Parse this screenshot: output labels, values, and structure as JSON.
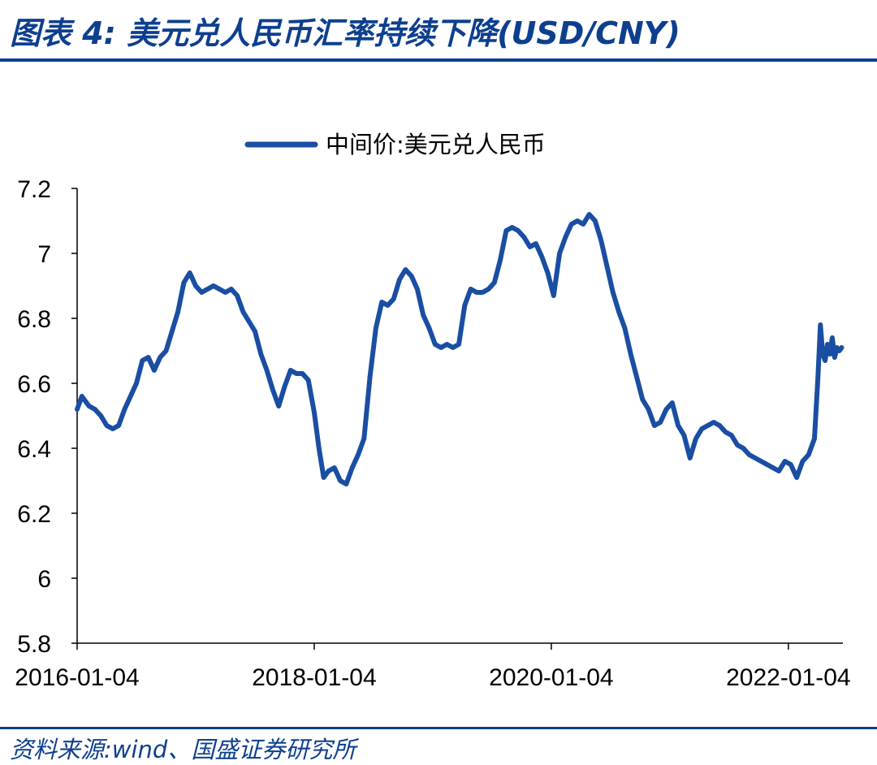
{
  "header": {
    "title": "图表 4:  美元兑人民币汇率持续下降(USD/CNY)"
  },
  "footer": {
    "source": "资料来源:wind、国盛证券研究所"
  },
  "colors": {
    "accent": "#0d3f8f",
    "series": "#1a4ea3"
  },
  "chart_data": {
    "type": "line",
    "title": "",
    "xlabel": "",
    "ylabel": "",
    "ylim": [
      5.8,
      7.2
    ],
    "yticks": [
      "5.8",
      "6",
      "6.2",
      "6.4",
      "6.6",
      "6.8",
      "7",
      "7.2"
    ],
    "xticks": [
      "2016-01-04",
      "2018-01-04",
      "2020-01-04",
      "2022-01-04"
    ],
    "xrange": [
      2016.0,
      2022.46
    ],
    "legend_position": "top-center",
    "series": [
      {
        "name": "中间价:美元兑人民币",
        "x": [
          2016.0,
          2016.04,
          2016.1,
          2016.15,
          2016.2,
          2016.25,
          2016.3,
          2016.35,
          2016.4,
          2016.45,
          2016.5,
          2016.55,
          2016.6,
          2016.65,
          2016.7,
          2016.75,
          2016.8,
          2016.85,
          2016.9,
          2016.95,
          2017.0,
          2017.05,
          2017.1,
          2017.15,
          2017.2,
          2017.25,
          2017.3,
          2017.35,
          2017.4,
          2017.45,
          2017.5,
          2017.55,
          2017.6,
          2017.65,
          2017.7,
          2017.75,
          2017.8,
          2017.85,
          2017.9,
          2017.95,
          2018.0,
          2018.04,
          2018.08,
          2018.12,
          2018.17,
          2018.22,
          2018.27,
          2018.32,
          2018.37,
          2018.42,
          2018.47,
          2018.52,
          2018.57,
          2018.62,
          2018.67,
          2018.72,
          2018.77,
          2018.82,
          2018.87,
          2018.92,
          2018.97,
          2019.02,
          2019.07,
          2019.12,
          2019.17,
          2019.22,
          2019.27,
          2019.32,
          2019.37,
          2019.42,
          2019.47,
          2019.52,
          2019.57,
          2019.62,
          2019.67,
          2019.72,
          2019.77,
          2019.82,
          2019.87,
          2019.92,
          2019.97,
          2020.02,
          2020.07,
          2020.12,
          2020.17,
          2020.22,
          2020.27,
          2020.32,
          2020.37,
          2020.42,
          2020.47,
          2020.52,
          2020.57,
          2020.62,
          2020.67,
          2020.72,
          2020.77,
          2020.82,
          2020.87,
          2020.92,
          2020.97,
          2021.02,
          2021.07,
          2021.12,
          2021.17,
          2021.22,
          2021.27,
          2021.32,
          2021.37,
          2021.42,
          2021.47,
          2021.52,
          2021.57,
          2021.62,
          2021.67,
          2021.72,
          2021.77,
          2021.82,
          2021.87,
          2021.92,
          2021.97,
          2022.02,
          2022.07,
          2022.12,
          2022.17,
          2022.22,
          2022.25,
          2022.27,
          2022.29,
          2022.31,
          2022.33,
          2022.35,
          2022.37,
          2022.39,
          2022.41,
          2022.43,
          2022.45
        ],
        "values": [
          6.52,
          6.56,
          6.53,
          6.52,
          6.5,
          6.47,
          6.46,
          6.47,
          6.52,
          6.56,
          6.6,
          6.67,
          6.68,
          6.64,
          6.68,
          6.7,
          6.76,
          6.82,
          6.91,
          6.94,
          6.9,
          6.88,
          6.89,
          6.9,
          6.89,
          6.88,
          6.89,
          6.87,
          6.82,
          6.79,
          6.76,
          6.69,
          6.64,
          6.58,
          6.53,
          6.59,
          6.64,
          6.63,
          6.63,
          6.61,
          6.51,
          6.4,
          6.31,
          6.33,
          6.34,
          6.3,
          6.29,
          6.34,
          6.38,
          6.43,
          6.62,
          6.77,
          6.85,
          6.84,
          6.86,
          6.92,
          6.95,
          6.93,
          6.89,
          6.81,
          6.77,
          6.72,
          6.71,
          6.72,
          6.71,
          6.72,
          6.84,
          6.89,
          6.88,
          6.88,
          6.89,
          6.91,
          6.98,
          7.07,
          7.08,
          7.07,
          7.05,
          7.02,
          7.03,
          6.99,
          6.94,
          6.87,
          7.0,
          7.05,
          7.09,
          7.1,
          7.09,
          7.12,
          7.1,
          7.04,
          6.96,
          6.88,
          6.82,
          6.77,
          6.69,
          6.62,
          6.55,
          6.52,
          6.47,
          6.48,
          6.52,
          6.54,
          6.47,
          6.44,
          6.37,
          6.43,
          6.46,
          6.47,
          6.48,
          6.47,
          6.45,
          6.44,
          6.41,
          6.4,
          6.38,
          6.37,
          6.36,
          6.35,
          6.34,
          6.33,
          6.36,
          6.35,
          6.31,
          6.36,
          6.38,
          6.43,
          6.62,
          6.78,
          6.69,
          6.67,
          6.72,
          6.69,
          6.74,
          6.68,
          6.71,
          6.7,
          6.71
        ]
      }
    ]
  }
}
